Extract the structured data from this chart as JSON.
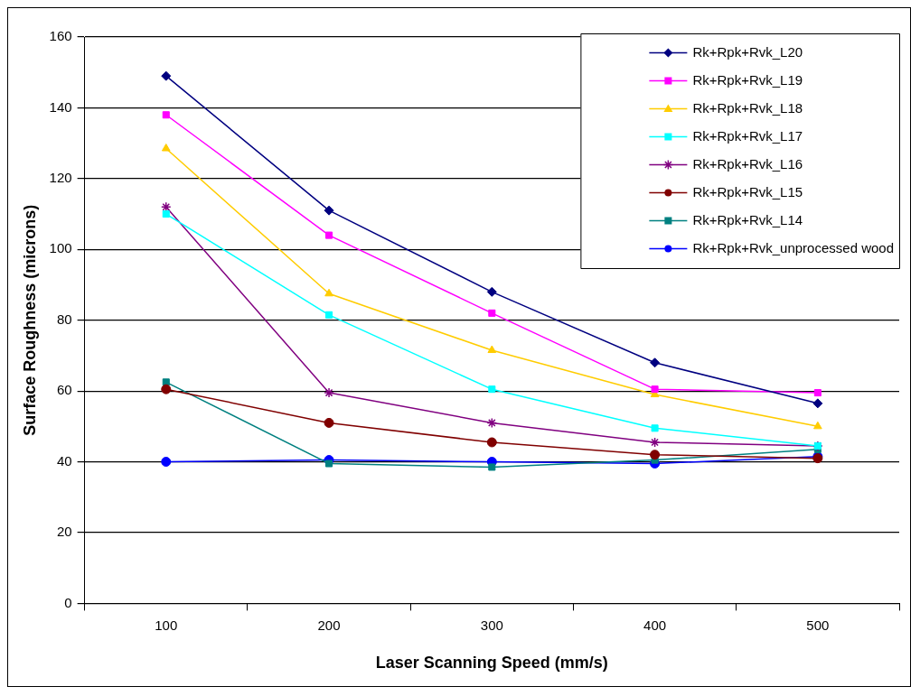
{
  "chart_data": {
    "type": "line",
    "xlabel": "Laser Scanning Speed (mm/s)",
    "ylabel": "Surface Roughness (microns)",
    "categories": [
      "100",
      "200",
      "300",
      "400",
      "500"
    ],
    "ylim": [
      0,
      160
    ],
    "yticks": [
      0,
      20,
      40,
      60,
      80,
      100,
      120,
      140,
      160
    ],
    "grid": "y",
    "legend": "top right",
    "series": [
      {
        "name": "Rk+Rpk+Rvk_L20",
        "color": "#000080",
        "marker": "diamond",
        "values": [
          149,
          111,
          88,
          68,
          56.5
        ]
      },
      {
        "name": "Rk+Rpk+Rvk_L19",
        "color": "#ff00ff",
        "marker": "square",
        "values": [
          138,
          104,
          82,
          60.5,
          59.5
        ]
      },
      {
        "name": "Rk+Rpk+Rvk_L18",
        "color": "#ffcc00",
        "marker": "triangle",
        "values": [
          128.5,
          87.5,
          71.5,
          59,
          50
        ]
      },
      {
        "name": "Rk+Rpk+Rvk_L17",
        "color": "#00ffff",
        "marker": "square",
        "values": [
          110,
          81.5,
          60.5,
          49.5,
          44.5
        ]
      },
      {
        "name": "Rk+Rpk+Rvk_L16",
        "color": "#800080",
        "marker": "cross",
        "values": [
          112,
          59.5,
          51,
          45.5,
          44.5
        ]
      },
      {
        "name": "Rk+Rpk+Rvk_L15",
        "color": "#800000",
        "marker": "circle",
        "values": [
          60.5,
          51,
          45.5,
          42,
          41
        ]
      },
      {
        "name": "Rk+Rpk+Rvk_L14",
        "color": "#008080",
        "marker": "square",
        "values": [
          62.5,
          39.5,
          38.5,
          40.5,
          43.5
        ]
      },
      {
        "name": "Rk+Rpk+Rvk_unprocessed wood",
        "color": "#0000ff",
        "marker": "circle",
        "values": [
          40,
          40.5,
          40,
          39.5,
          41.5
        ]
      }
    ]
  }
}
